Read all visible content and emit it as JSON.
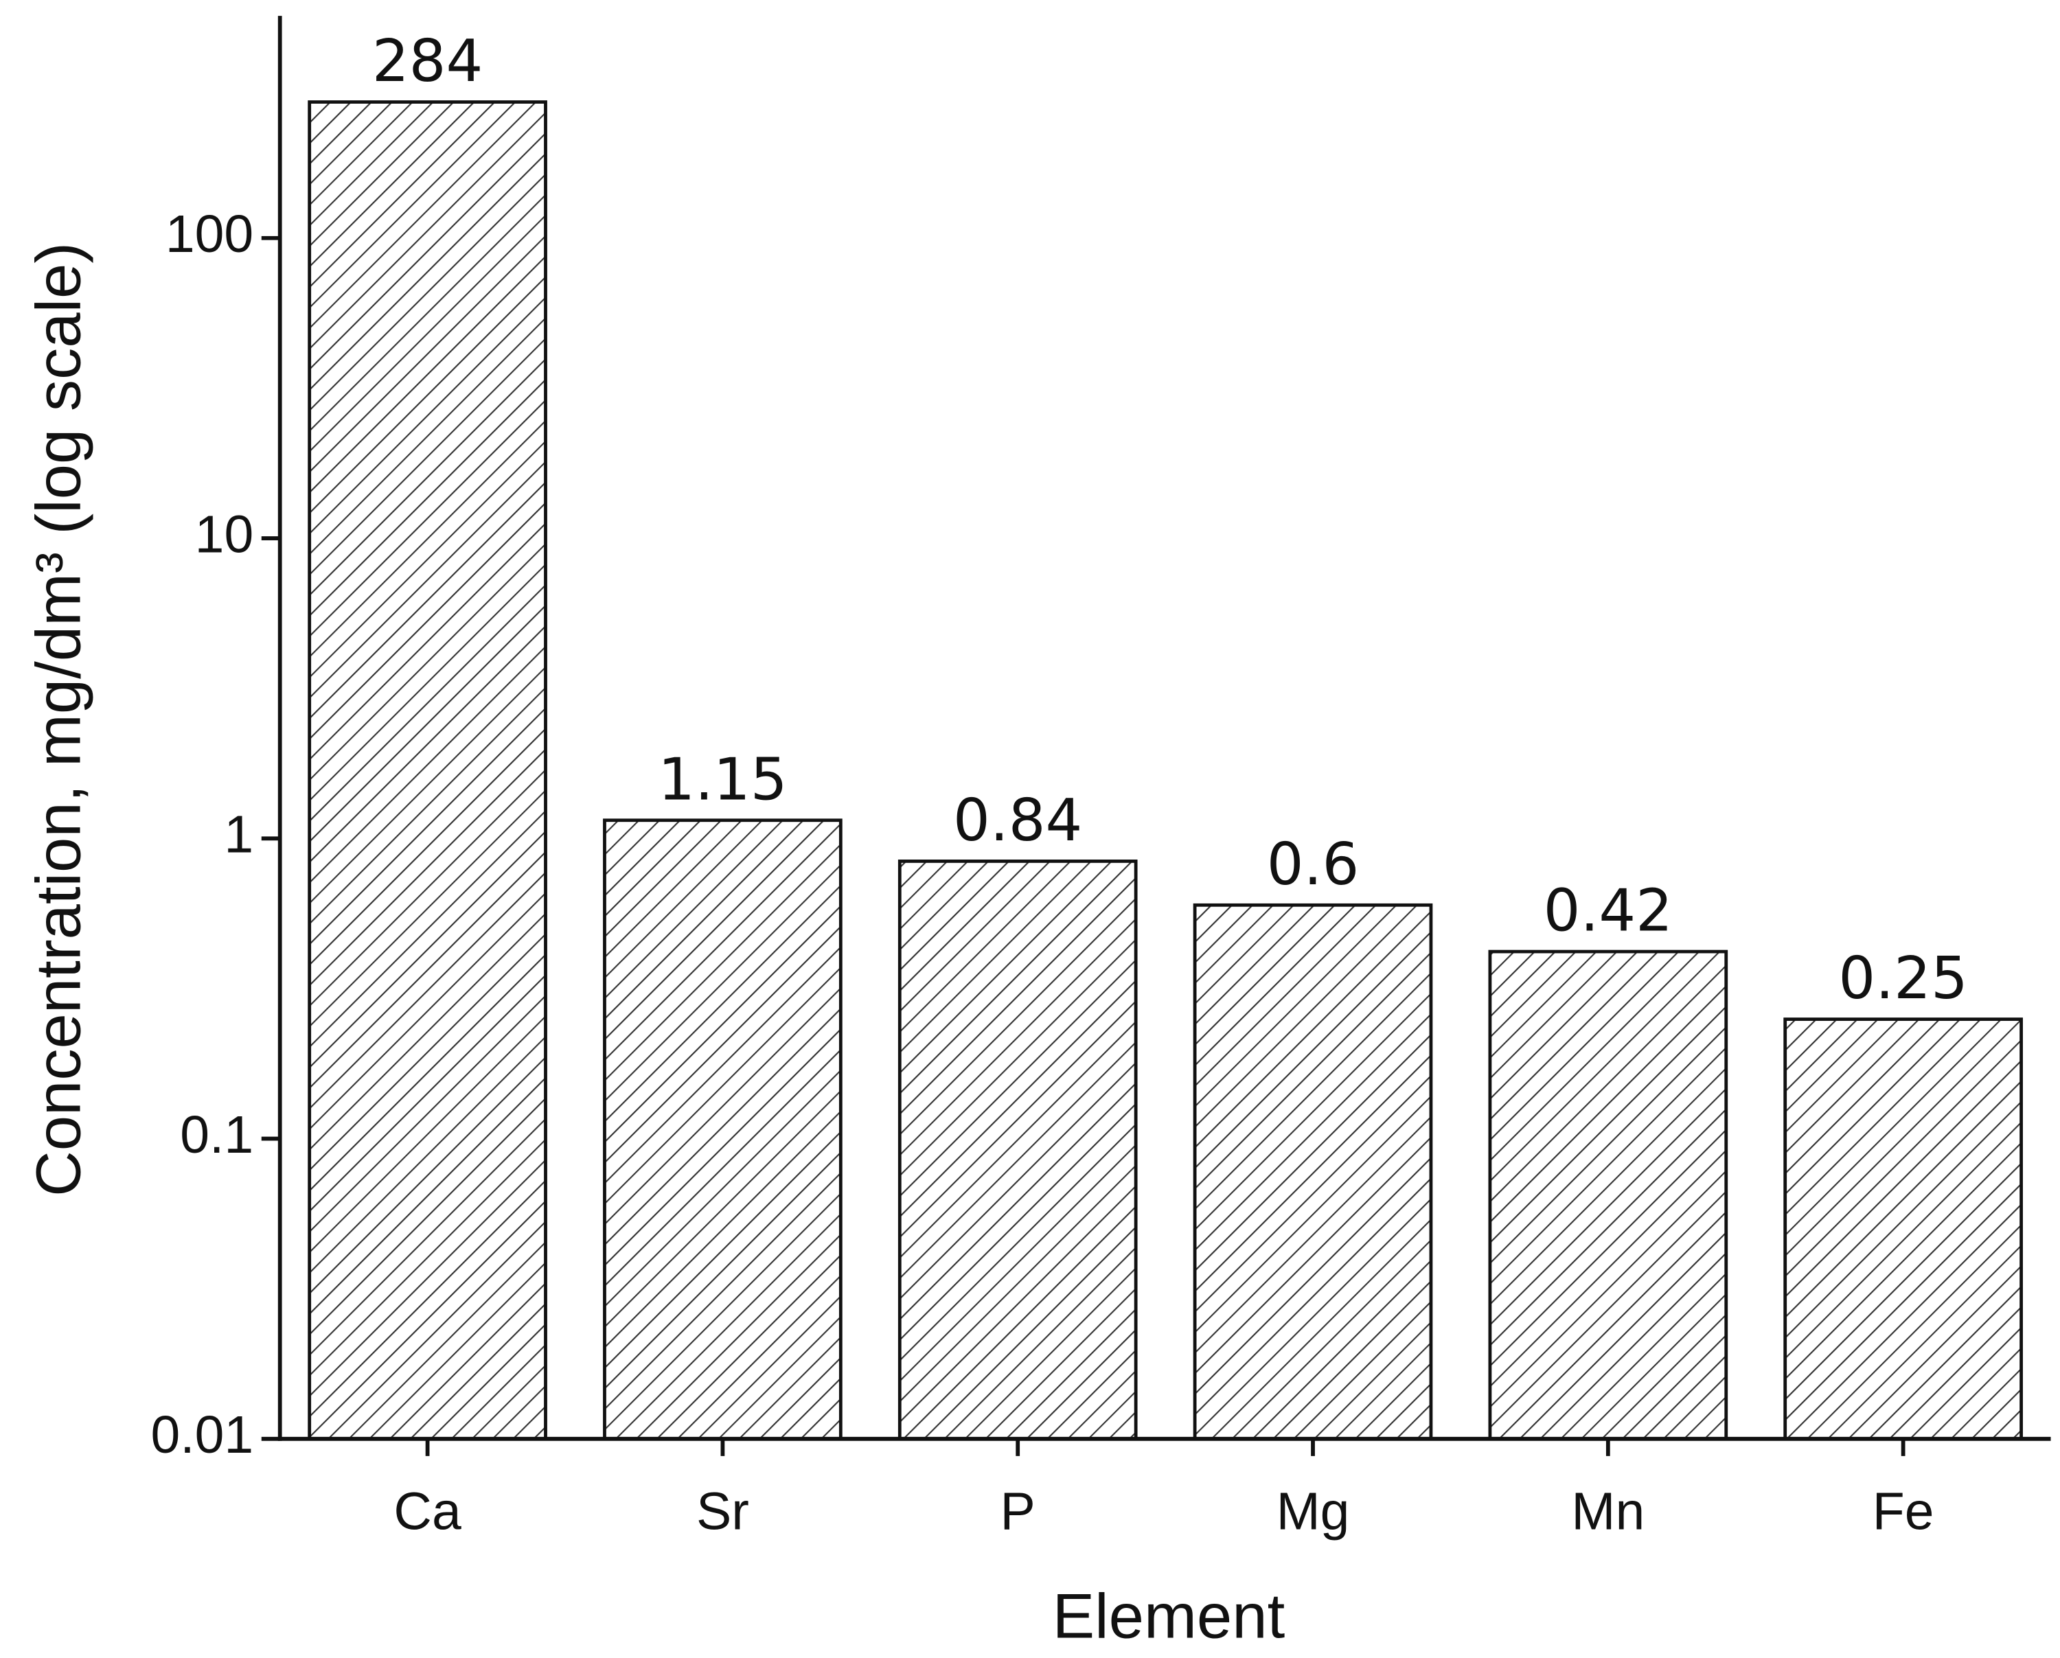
{
  "chart_data": {
    "type": "bar",
    "categories": [
      "Ca",
      "Sr",
      "P",
      "Mg",
      "Mn",
      "Fe"
    ],
    "values": [
      284,
      1.15,
      0.84,
      0.6,
      0.42,
      0.25
    ],
    "x_label": "Element",
    "y_label": "Concentration, mg/dm³ (log scale)",
    "ylim": [
      0.01,
      550
    ],
    "yticks": [
      0.01,
      0.1,
      1,
      10,
      100
    ],
    "log_y": true,
    "color": "#333333"
  }
}
